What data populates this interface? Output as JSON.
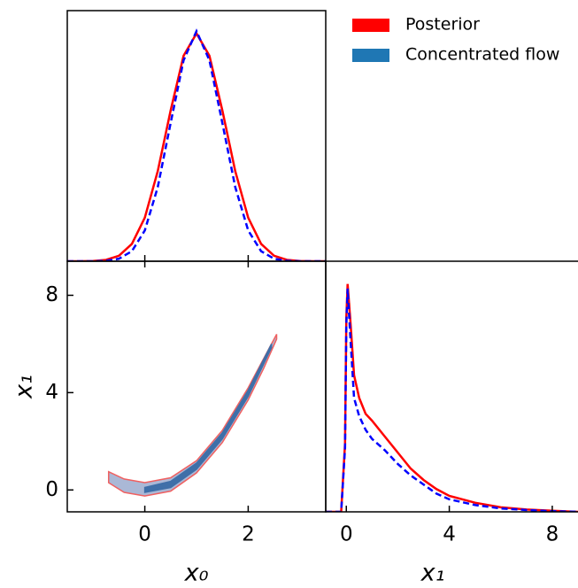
{
  "legend": [
    {
      "name": "Posterior",
      "color": "#ff0000"
    },
    {
      "name": "Concentrated flow",
      "color": "#1f77b4"
    }
  ],
  "chart_data": [
    {
      "type": "line",
      "xlim": [
        -1.5,
        3.5
      ],
      "ylim": [
        0,
        1.1
      ],
      "xticks": [
        0,
        2
      ],
      "x": [
        -1.5,
        -1.25,
        -1,
        -0.75,
        -0.5,
        -0.25,
        0,
        0.25,
        0.5,
        0.75,
        1,
        1.25,
        1.5,
        1.75,
        2,
        2.25,
        2.5,
        2.75,
        3,
        3.25,
        3.5
      ],
      "series": [
        {
          "color": "#ff0000",
          "dash": false,
          "values": [
            0,
            0,
            0.001,
            0.006,
            0.024,
            0.076,
            0.191,
            0.395,
            0.662,
            0.902,
            1,
            0.902,
            0.662,
            0.395,
            0.191,
            0.076,
            0.024,
            0.006,
            0.001,
            0,
            0
          ]
        },
        {
          "color": "#0000ff",
          "dash": true,
          "values": [
            0,
            0,
            0,
            0.002,
            0.011,
            0.044,
            0.135,
            0.325,
            0.607,
            0.882,
            1.01,
            0.882,
            0.607,
            0.325,
            0.135,
            0.044,
            0.011,
            0.002,
            0,
            0,
            0
          ]
        }
      ]
    },
    {
      "type": "contour",
      "xlim": [
        -1.5,
        3.5
      ],
      "ylim": [
        -0.9,
        9.4
      ],
      "xticks": [
        0,
        2
      ],
      "yticks": [
        0,
        4,
        8
      ],
      "xlabel": "x₀",
      "ylabel": "x₁",
      "contours": [
        {
          "fill": "#aab8d6",
          "stroke": "#f06060",
          "x": [
            -0.7,
            -0.4,
            0,
            0.5,
            1,
            1.5,
            2,
            2.3,
            2.55,
            2.55,
            2.3,
            2,
            1.5,
            1,
            0.5,
            0,
            -0.4,
            -0.7
          ],
          "y": [
            0.75,
            0.45,
            0.3,
            0.5,
            1.2,
            2.45,
            4.2,
            5.4,
            6.4,
            6.2,
            5.0,
            3.7,
            1.95,
            0.7,
            -0.05,
            -0.25,
            -0.1,
            0.3
          ]
        },
        {
          "fill": "#3f6fa8",
          "stroke": "#3f6fa8",
          "x": [
            0,
            0.5,
            1,
            1.5,
            2,
            2.45,
            2.45,
            2,
            1.5,
            1,
            0.5,
            0
          ],
          "y": [
            0.1,
            0.35,
            1.1,
            2.35,
            4.1,
            6.0,
            5.85,
            3.85,
            2.1,
            0.85,
            0.1,
            -0.1
          ]
        }
      ]
    },
    {
      "type": "line",
      "xlim": [
        -0.8,
        9
      ],
      "ylim": [
        0,
        1.1
      ],
      "xticks": [
        0,
        4,
        8
      ],
      "xlabel": "x₁",
      "x": [
        -0.8,
        -0.2,
        -0.05,
        0,
        0.05,
        0.15,
        0.3,
        0.5,
        0.75,
        1,
        1.5,
        2,
        2.5,
        3,
        3.5,
        4,
        5,
        6,
        7,
        8,
        9
      ],
      "series": [
        {
          "color": "#ff0000",
          "dash": false,
          "values": [
            0,
            0,
            0.3,
            0.85,
            1.0,
            0.85,
            0.6,
            0.5,
            0.43,
            0.4,
            0.33,
            0.26,
            0.19,
            0.14,
            0.1,
            0.07,
            0.04,
            0.02,
            0.01,
            0.005,
            0
          ]
        },
        {
          "color": "#0000ff",
          "dash": true,
          "values": [
            0,
            0,
            0.28,
            0.82,
            0.98,
            0.78,
            0.5,
            0.42,
            0.36,
            0.32,
            0.27,
            0.21,
            0.16,
            0.12,
            0.08,
            0.055,
            0.03,
            0.015,
            0.008,
            0.003,
            0
          ]
        }
      ]
    }
  ]
}
